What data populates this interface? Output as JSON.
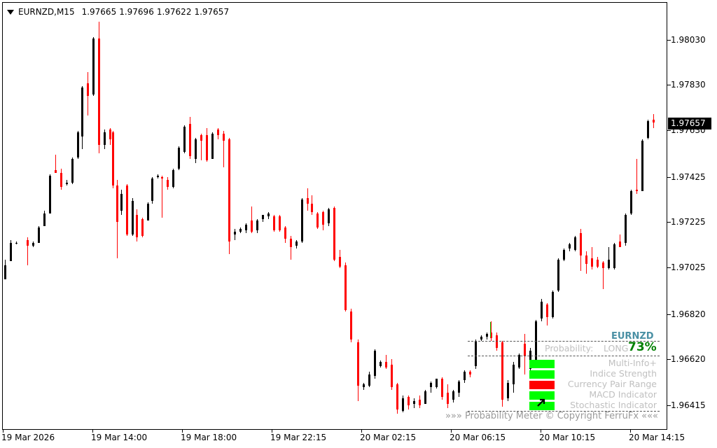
{
  "header": {
    "symbol_timeframe": "EURNZD,M15",
    "open": "1.97665",
    "high": "1.97696",
    "low": "1.97622",
    "close": "1.97657"
  },
  "price_axis": {
    "labels": [
      "1.98030",
      "1.97830",
      "1.97630",
      "1.97425",
      "1.97225",
      "1.97025",
      "1.96820",
      "1.96620",
      "1.96415"
    ],
    "current_price": "1.97657"
  },
  "time_axis": {
    "labels": [
      "19 Mar 2026",
      "19 Mar 14:00",
      "19 Mar 18:00",
      "19 Mar 22:15",
      "20 Mar 02:15",
      "20 Mar 06:15",
      "20 Mar 10:15",
      "20 Mar 14:15"
    ]
  },
  "indicator": {
    "symbol": "EURNZD",
    "probability_label": "Probability:",
    "direction": "LONG",
    "percent": "73%",
    "items": [
      "Multi-Info+",
      "Indice Strength",
      "Currency Pair Range",
      "MACD Indicator",
      "Stochastic Indicator"
    ],
    "item_states": [
      "up",
      "up",
      "down",
      "up",
      "up"
    ],
    "footer": "»»»  Probability Meter © Copyright FerruFx  «««",
    "colors": {
      "up": "#00ff00",
      "down": "#ff0000",
      "title": "#4a90a4",
      "percent": "#008000"
    }
  },
  "colors": {
    "bull": "#000000",
    "bear": "#ff0000"
  }
}
